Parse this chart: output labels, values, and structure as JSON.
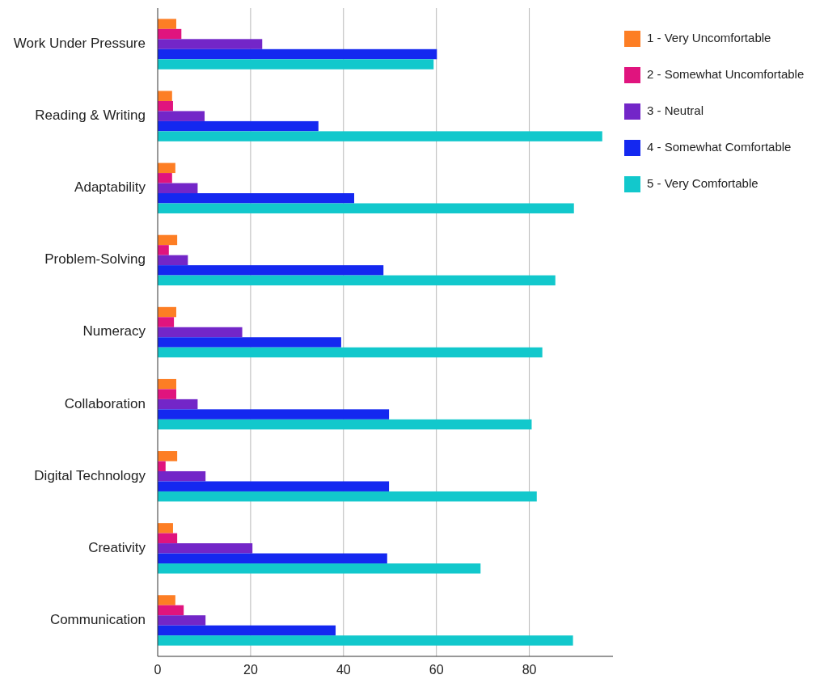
{
  "chart_data": {
    "type": "bar",
    "orientation": "horizontal",
    "categories": [
      "Work Under Pressure",
      "Reading & Writing",
      "Adaptability",
      "Problem-Solving",
      "Numeracy",
      "Collaboration",
      "Digital Technology",
      "Creativity",
      "Communication"
    ],
    "series": [
      {
        "name": "1 - Very Uncomfortable",
        "color": "#fd7e24",
        "values": [
          4.0,
          3.1,
          3.8,
          4.2,
          4.0,
          4.0,
          4.2,
          3.3,
          3.8
        ]
      },
      {
        "name": "2 - Somewhat Uncomfortable",
        "color": "#e0147e",
        "values": [
          5.1,
          3.3,
          3.1,
          2.4,
          3.5,
          4.0,
          1.7,
          4.2,
          5.6
        ]
      },
      {
        "name": "3 - Neutral",
        "color": "#7326c8",
        "values": [
          22.5,
          10.1,
          8.6,
          6.5,
          18.2,
          8.6,
          10.3,
          20.4,
          10.3
        ]
      },
      {
        "name": "4 - Somewhat Comfortable",
        "color": "#1428f0",
        "values": [
          60.1,
          34.6,
          42.3,
          48.6,
          39.5,
          49.8,
          49.8,
          49.4,
          38.3
        ]
      },
      {
        "name": "5 - Very Comfortable",
        "color": "#12c8cc",
        "values": [
          59.4,
          95.7,
          89.6,
          85.6,
          82.8,
          80.5,
          81.6,
          69.5,
          89.4
        ]
      }
    ],
    "xlim": [
      0,
      98
    ],
    "xticks": [
      0,
      20,
      40,
      60,
      80
    ],
    "grid": "x",
    "legend": "top right"
  }
}
